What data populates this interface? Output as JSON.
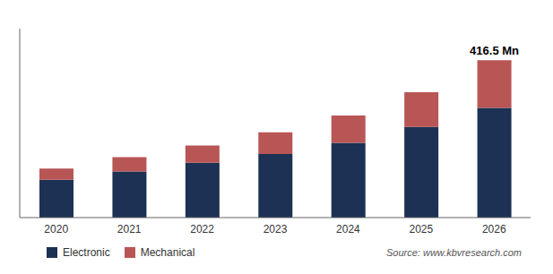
{
  "chart_data": {
    "type": "bar",
    "stacked": true,
    "categories": [
      "2020",
      "2021",
      "2022",
      "2023",
      "2024",
      "2025",
      "2026"
    ],
    "series": [
      {
        "name": "Electronic",
        "color": "#1c3154",
        "values": [
          100,
          122,
          145,
          168,
          198,
          240,
          290
        ]
      },
      {
        "name": "Mechanical",
        "color": "#b85555",
        "values": [
          30,
          38,
          46,
          58,
          72,
          92,
          126.5
        ]
      }
    ],
    "ylim": [
      0,
      500
    ],
    "tick_labels": "x",
    "grid": false,
    "legend": "bottom",
    "annotations": [
      {
        "text": "416.5 Mn",
        "x": "2026"
      }
    ],
    "source": "Source: www.kbvresearch.com"
  }
}
